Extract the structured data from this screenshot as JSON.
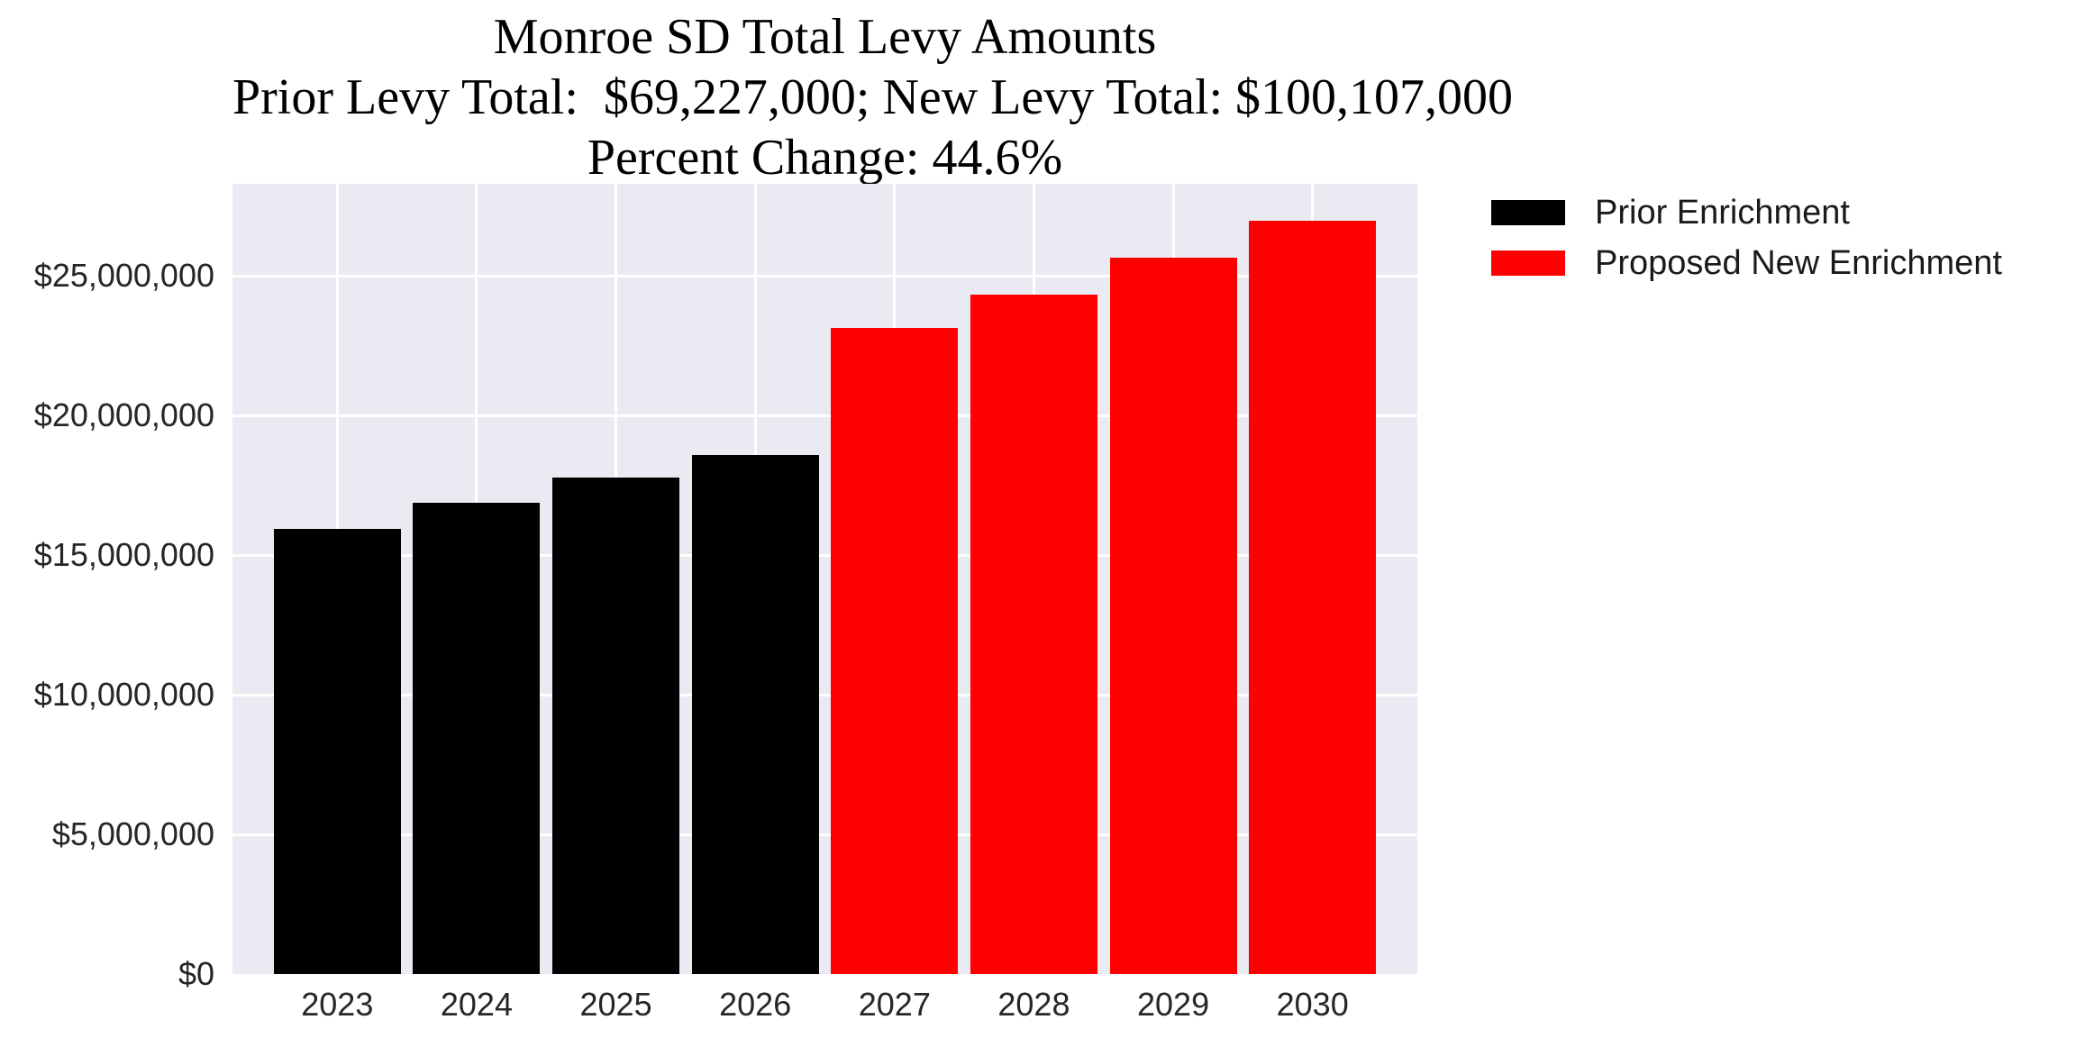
{
  "title": {
    "line1": "Monroe SD Total Levy Amounts",
    "line2": "Prior Levy Total:  $69,227,000; New Levy Total: $100,107,000",
    "line3": "Percent Change: 44.6%"
  },
  "legend": [
    {
      "label": "Prior Enrichment",
      "color": "#000000"
    },
    {
      "label": "Proposed New Enrichment",
      "color": "#ff0000"
    }
  ],
  "colors": {
    "plot_background": "#eaeaf2",
    "gridline": "#ffffff",
    "prior_bars": "#000000",
    "new_bars": "#ff0000",
    "tick_text": "#262626",
    "title_text": "#000000"
  },
  "chart_data": {
    "type": "bar",
    "title": "Monroe SD Total Levy Amounts",
    "subtitle": "Prior Levy Total:  $69,227,000; New Levy Total: $100,107,000",
    "subtitle2": "Percent Change: 44.6%",
    "prior_levy_total": 69227000,
    "new_levy_total": 100107000,
    "percent_change": "44.6%",
    "categories": [
      "2023",
      "2024",
      "2025",
      "2026",
      "2027",
      "2028",
      "2029",
      "2030"
    ],
    "series": [
      {
        "name": "Prior Enrichment",
        "color": "#000000",
        "years": [
          "2023",
          "2024",
          "2025",
          "2026"
        ],
        "values": [
          15950000,
          16890000,
          17790000,
          18597000
        ]
      },
      {
        "name": "Proposed New Enrichment",
        "color": "#ff0000",
        "years": [
          "2027",
          "2028",
          "2029",
          "2030"
        ],
        "values": [
          23140000,
          24330000,
          25670000,
          26967000
        ]
      }
    ],
    "bars": [
      {
        "year": "2023",
        "value": 15950000,
        "series": "Prior Enrichment",
        "color": "#000000"
      },
      {
        "year": "2024",
        "value": 16890000,
        "series": "Prior Enrichment",
        "color": "#000000"
      },
      {
        "year": "2025",
        "value": 17790000,
        "series": "Prior Enrichment",
        "color": "#000000"
      },
      {
        "year": "2026",
        "value": 18597000,
        "series": "Prior Enrichment",
        "color": "#000000"
      },
      {
        "year": "2027",
        "value": 23140000,
        "series": "Proposed New Enrichment",
        "color": "#ff0000"
      },
      {
        "year": "2028",
        "value": 24330000,
        "series": "Proposed New Enrichment",
        "color": "#ff0000"
      },
      {
        "year": "2029",
        "value": 25670000,
        "series": "Proposed New Enrichment",
        "color": "#ff0000"
      },
      {
        "year": "2030",
        "value": 26967000,
        "series": "Proposed New Enrichment",
        "color": "#ff0000"
      }
    ],
    "y_ticks": [
      {
        "value": 0,
        "label": "$0"
      },
      {
        "value": 5000000,
        "label": "$5,000,000"
      },
      {
        "value": 10000000,
        "label": "$10,000,000"
      },
      {
        "value": 15000000,
        "label": "$15,000,000"
      },
      {
        "value": 20000000,
        "label": "$20,000,000"
      },
      {
        "value": 25000000,
        "label": "$25,000,000"
      }
    ],
    "xlabel": "",
    "ylabel": "",
    "ylim": [
      0,
      28300000
    ],
    "grid": true,
    "legend_position": "upper-right-outside"
  }
}
